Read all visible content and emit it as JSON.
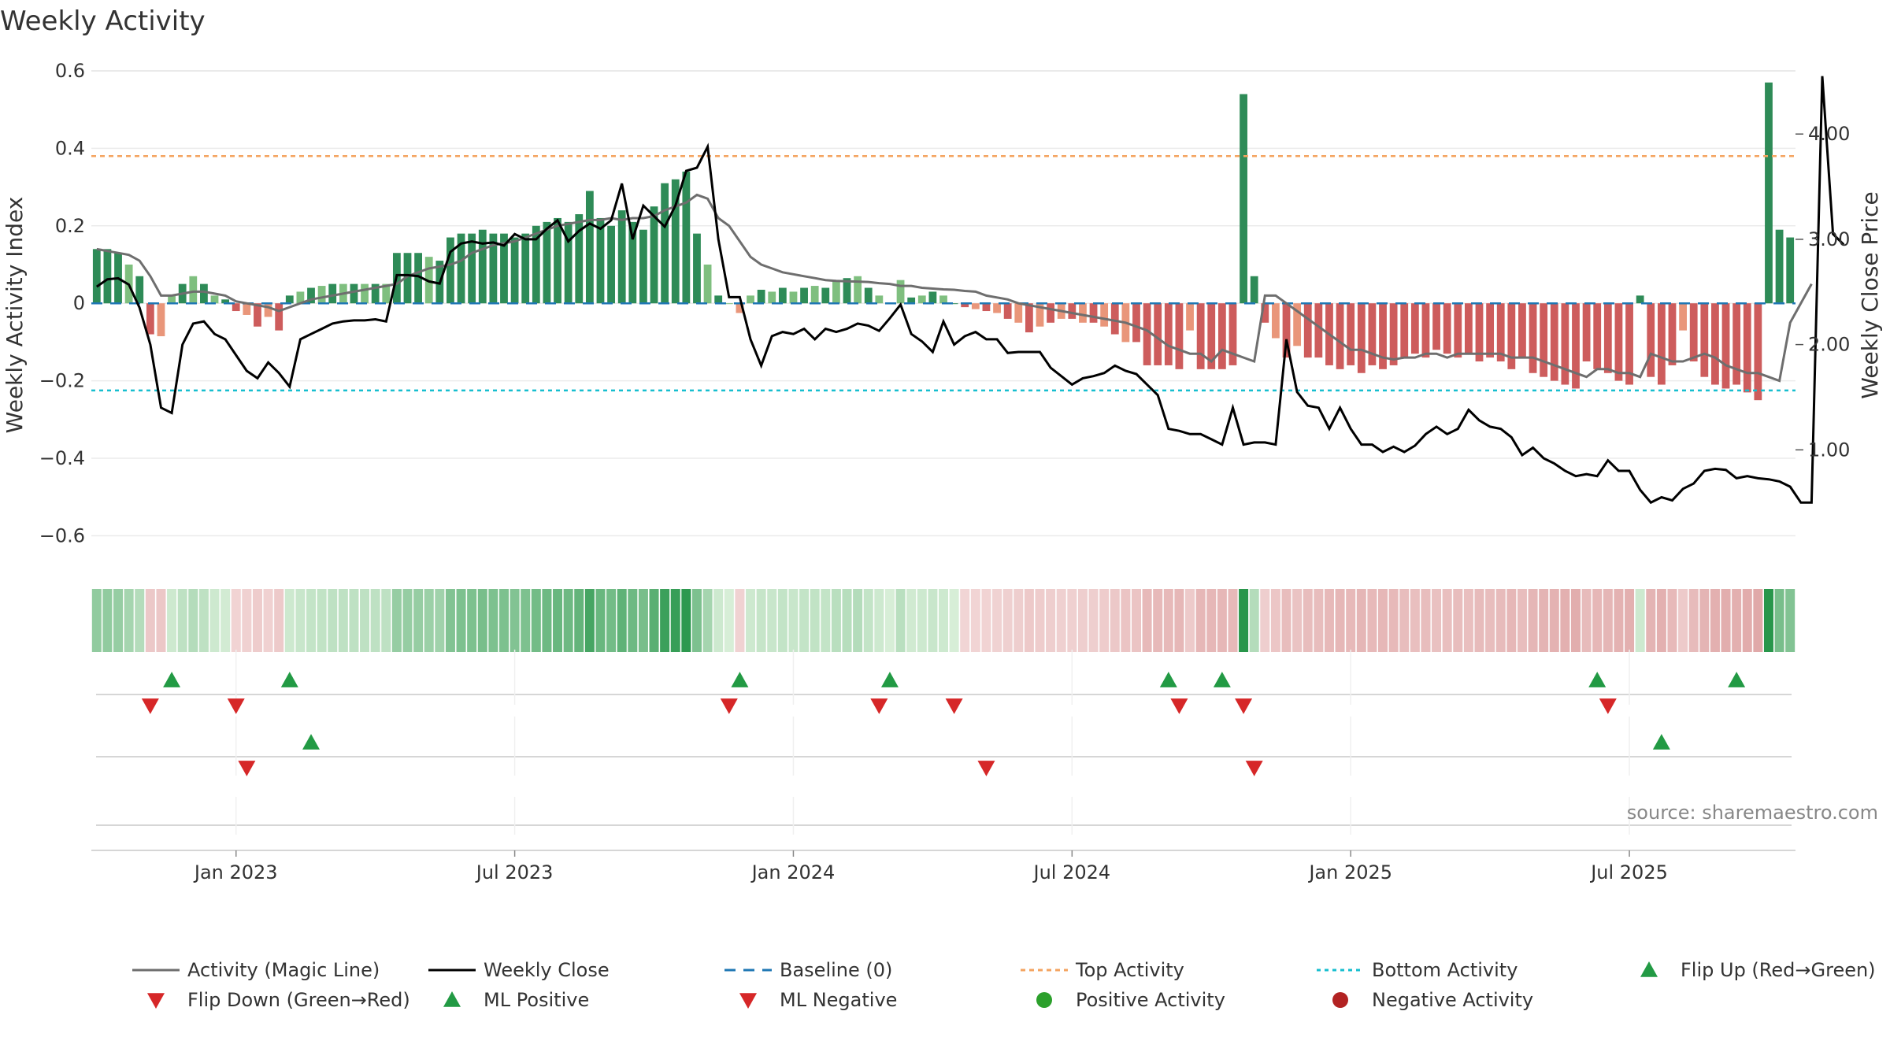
{
  "chart_data": {
    "type": "bar",
    "title": "Weekly Activity",
    "ylabel_left": "Weekly Activity Index",
    "ylabel_right": "Weekly Close Price",
    "ylim_left": [
      -0.65,
      0.6
    ],
    "ylim_right": [
      0.0,
      4.6
    ],
    "left_ticks": [
      {
        "value": 0.6,
        "label": "0.6"
      },
      {
        "value": 0.4,
        "label": "0.4"
      },
      {
        "value": 0.2,
        "label": "0.2"
      },
      {
        "value": 0.0,
        "label": "0"
      },
      {
        "value": -0.2,
        "label": "−0.2"
      },
      {
        "value": -0.4,
        "label": "−0.4"
      },
      {
        "value": -0.6,
        "label": "−0.6"
      }
    ],
    "right_ticks": [
      {
        "value": 4.0,
        "label": "4.00"
      },
      {
        "value": 3.0,
        "label": "3.00"
      },
      {
        "value": 2.0,
        "label": "2.00"
      },
      {
        "value": 1.0,
        "label": "1.00"
      }
    ],
    "x_ticks": [
      {
        "index": 13,
        "label": "Jan 2023"
      },
      {
        "index": 39,
        "label": "Jul 2023"
      },
      {
        "index": 65,
        "label": "Jan 2024"
      },
      {
        "index": 91,
        "label": "Jul 2024"
      },
      {
        "index": 117,
        "label": "Jan 2025"
      },
      {
        "index": 143,
        "label": "Jul 2025"
      }
    ],
    "top_activity": 0.38,
    "bottom_activity": -0.225,
    "activity": [
      0.14,
      0.14,
      0.13,
      0.1,
      0.07,
      -0.08,
      -0.085,
      0.02,
      0.05,
      0.07,
      0.05,
      0.02,
      0.01,
      -0.02,
      -0.03,
      -0.06,
      -0.035,
      -0.07,
      0.02,
      0.03,
      0.04,
      0.045,
      0.05,
      0.05,
      0.05,
      0.05,
      0.05,
      0.05,
      0.13,
      0.13,
      0.13,
      0.12,
      0.11,
      0.17,
      0.18,
      0.18,
      0.19,
      0.18,
      0.18,
      0.17,
      0.18,
      0.2,
      0.21,
      0.22,
      0.21,
      0.23,
      0.29,
      0.22,
      0.2,
      0.24,
      0.21,
      0.19,
      0.25,
      0.31,
      0.32,
      0.34,
      0.18,
      0.1,
      0.02,
      0.0,
      -0.025,
      0.02,
      0.035,
      0.03,
      0.04,
      0.03,
      0.04,
      0.045,
      0.04,
      0.06,
      0.065,
      0.07,
      0.04,
      0.02,
      0.0,
      0.06,
      0.015,
      0.02,
      0.03,
      0.02,
      0.0,
      -0.01,
      -0.015,
      -0.02,
      -0.025,
      -0.04,
      -0.05,
      -0.075,
      -0.06,
      -0.05,
      -0.04,
      -0.04,
      -0.05,
      -0.05,
      -0.06,
      -0.08,
      -0.1,
      -0.1,
      -0.16,
      -0.16,
      -0.16,
      -0.17,
      -0.07,
      -0.17,
      -0.17,
      -0.17,
      -0.16,
      0.54,
      0.07,
      -0.05,
      -0.09,
      -0.14,
      -0.11,
      -0.14,
      -0.14,
      -0.16,
      -0.17,
      -0.16,
      -0.18,
      -0.16,
      -0.17,
      -0.16,
      -0.14,
      -0.13,
      -0.14,
      -0.12,
      -0.13,
      -0.14,
      -0.13,
      -0.15,
      -0.14,
      -0.15,
      -0.17,
      -0.14,
      -0.18,
      -0.19,
      -0.2,
      -0.21,
      -0.22,
      -0.15,
      -0.17,
      -0.18,
      -0.2,
      -0.21,
      0.02,
      -0.19,
      -0.21,
      -0.16,
      -0.07,
      -0.15,
      -0.19,
      -0.21,
      -0.22,
      -0.21,
      -0.23,
      -0.25,
      0.57,
      0.19,
      0.17
    ],
    "magic_line": [
      0.14,
      0.135,
      0.13,
      0.125,
      0.11,
      0.07,
      0.02,
      0.02,
      0.025,
      0.03,
      0.03,
      0.025,
      0.02,
      0.005,
      0.0,
      -0.005,
      -0.01,
      -0.02,
      -0.01,
      0.0,
      0.01,
      0.015,
      0.02,
      0.025,
      0.03,
      0.035,
      0.04,
      0.045,
      0.05,
      0.07,
      0.08,
      0.09,
      0.095,
      0.1,
      0.11,
      0.13,
      0.14,
      0.15,
      0.155,
      0.16,
      0.17,
      0.18,
      0.19,
      0.2,
      0.205,
      0.21,
      0.215,
      0.215,
      0.22,
      0.215,
      0.22,
      0.22,
      0.225,
      0.24,
      0.25,
      0.26,
      0.28,
      0.27,
      0.22,
      0.2,
      0.16,
      0.12,
      0.1,
      0.09,
      0.08,
      0.075,
      0.07,
      0.065,
      0.06,
      0.058,
      0.057,
      0.056,
      0.055,
      0.052,
      0.05,
      0.045,
      0.045,
      0.04,
      0.038,
      0.036,
      0.035,
      0.032,
      0.03,
      0.02,
      0.015,
      0.01,
      0.0,
      -0.005,
      -0.01,
      -0.015,
      -0.02,
      -0.025,
      -0.03,
      -0.035,
      -0.04,
      -0.045,
      -0.05,
      -0.06,
      -0.07,
      -0.09,
      -0.11,
      -0.12,
      -0.13,
      -0.13,
      -0.15,
      -0.12,
      -0.13,
      -0.14,
      -0.15,
      0.02,
      0.02,
      0.0,
      -0.02,
      -0.04,
      -0.06,
      -0.08,
      -0.1,
      -0.12,
      -0.12,
      -0.13,
      -0.14,
      -0.145,
      -0.14,
      -0.14,
      -0.13,
      -0.13,
      -0.14,
      -0.13,
      -0.13,
      -0.13,
      -0.13,
      -0.13,
      -0.14,
      -0.14,
      -0.14,
      -0.15,
      -0.16,
      -0.17,
      -0.18,
      -0.19,
      -0.17,
      -0.17,
      -0.18,
      -0.18,
      -0.19,
      -0.13,
      -0.14,
      -0.15,
      -0.15,
      -0.14,
      -0.13,
      -0.14,
      -0.16,
      -0.17,
      -0.18,
      -0.18,
      -0.19,
      -0.2,
      -0.05,
      0.0,
      0.05
    ],
    "weekly_close": [
      2.55,
      2.62,
      2.63,
      2.57,
      2.35,
      2.0,
      1.4,
      1.35,
      2.0,
      2.2,
      2.22,
      2.1,
      2.05,
      1.9,
      1.75,
      1.68,
      1.83,
      1.73,
      1.6,
      2.05,
      2.1,
      2.15,
      2.2,
      2.22,
      2.23,
      2.23,
      2.24,
      2.22,
      2.66,
      2.66,
      2.65,
      2.6,
      2.58,
      2.88,
      2.96,
      2.98,
      2.96,
      2.97,
      2.94,
      3.05,
      3.0,
      3.0,
      3.1,
      3.18,
      2.98,
      3.08,
      3.15,
      3.1,
      3.18,
      3.53,
      3.0,
      3.32,
      3.22,
      3.12,
      3.32,
      3.65,
      3.68,
      3.88,
      3.0,
      2.45,
      2.45,
      2.05,
      1.8,
      2.08,
      2.12,
      2.1,
      2.15,
      2.05,
      2.15,
      2.12,
      2.15,
      2.2,
      2.18,
      2.13,
      2.25,
      2.38,
      2.1,
      2.03,
      1.93,
      2.22,
      2.0,
      2.08,
      2.12,
      2.05,
      2.05,
      1.92,
      1.93,
      1.93,
      1.93,
      1.78,
      1.7,
      1.62,
      1.68,
      1.7,
      1.73,
      1.8,
      1.75,
      1.72,
      1.62,
      1.52,
      1.2,
      1.18,
      1.15,
      1.15,
      1.1,
      1.05,
      1.4,
      1.05,
      1.07,
      1.07,
      1.05,
      2.05,
      1.55,
      1.42,
      1.4,
      1.2,
      1.4,
      1.2,
      1.05,
      1.05,
      0.98,
      1.03,
      0.98,
      1.04,
      1.15,
      1.22,
      1.15,
      1.2,
      1.38,
      1.28,
      1.22,
      1.2,
      1.12,
      0.95,
      1.02,
      0.92,
      0.87,
      0.8,
      0.75,
      0.77,
      0.75,
      0.9,
      0.8,
      0.8,
      0.62,
      0.5,
      0.55,
      0.52,
      0.63,
      0.68,
      0.8,
      0.82,
      0.81,
      0.73,
      0.75,
      0.73,
      0.72,
      0.7,
      0.65,
      0.5,
      0.5,
      4.55,
      3.05,
      2.95
    ],
    "ml_positive_idx": [
      20,
      146
    ],
    "ml_negative_idx": [
      14,
      83,
      108
    ],
    "flip_up_idx": [
      7,
      18,
      60,
      74,
      100,
      105,
      140,
      153
    ],
    "flip_down_idx": [
      5,
      13,
      59,
      73,
      80,
      101,
      107,
      141
    ],
    "legend": [
      "Activity (Magic Line)",
      "Weekly Close",
      "Baseline (0)",
      "Top Activity",
      "Bottom Activity",
      "Flip Up (Red→Green)",
      "Flip Down (Green→Red)",
      "ML Positive",
      "ML Negative",
      "Positive Activity",
      "Negative Activity"
    ],
    "source": "source: sharemaestro.com"
  },
  "colors": {
    "pos_bar": "#2e8b57",
    "pos_bar_light": "#7fbf7f",
    "neg_bar": "#cd5c5c",
    "neg_bar_light": "#e9967a",
    "magic_line": "#6e6e6e",
    "weekly_close": "#000000",
    "baseline": "#1f77b4",
    "top_activity": "#f4a460",
    "bottom_activity": "#17becf",
    "flip_up": "#229a44",
    "flip_down": "#d62728",
    "positive_dot": "#2ca02c",
    "negative_dot": "#b22222"
  }
}
